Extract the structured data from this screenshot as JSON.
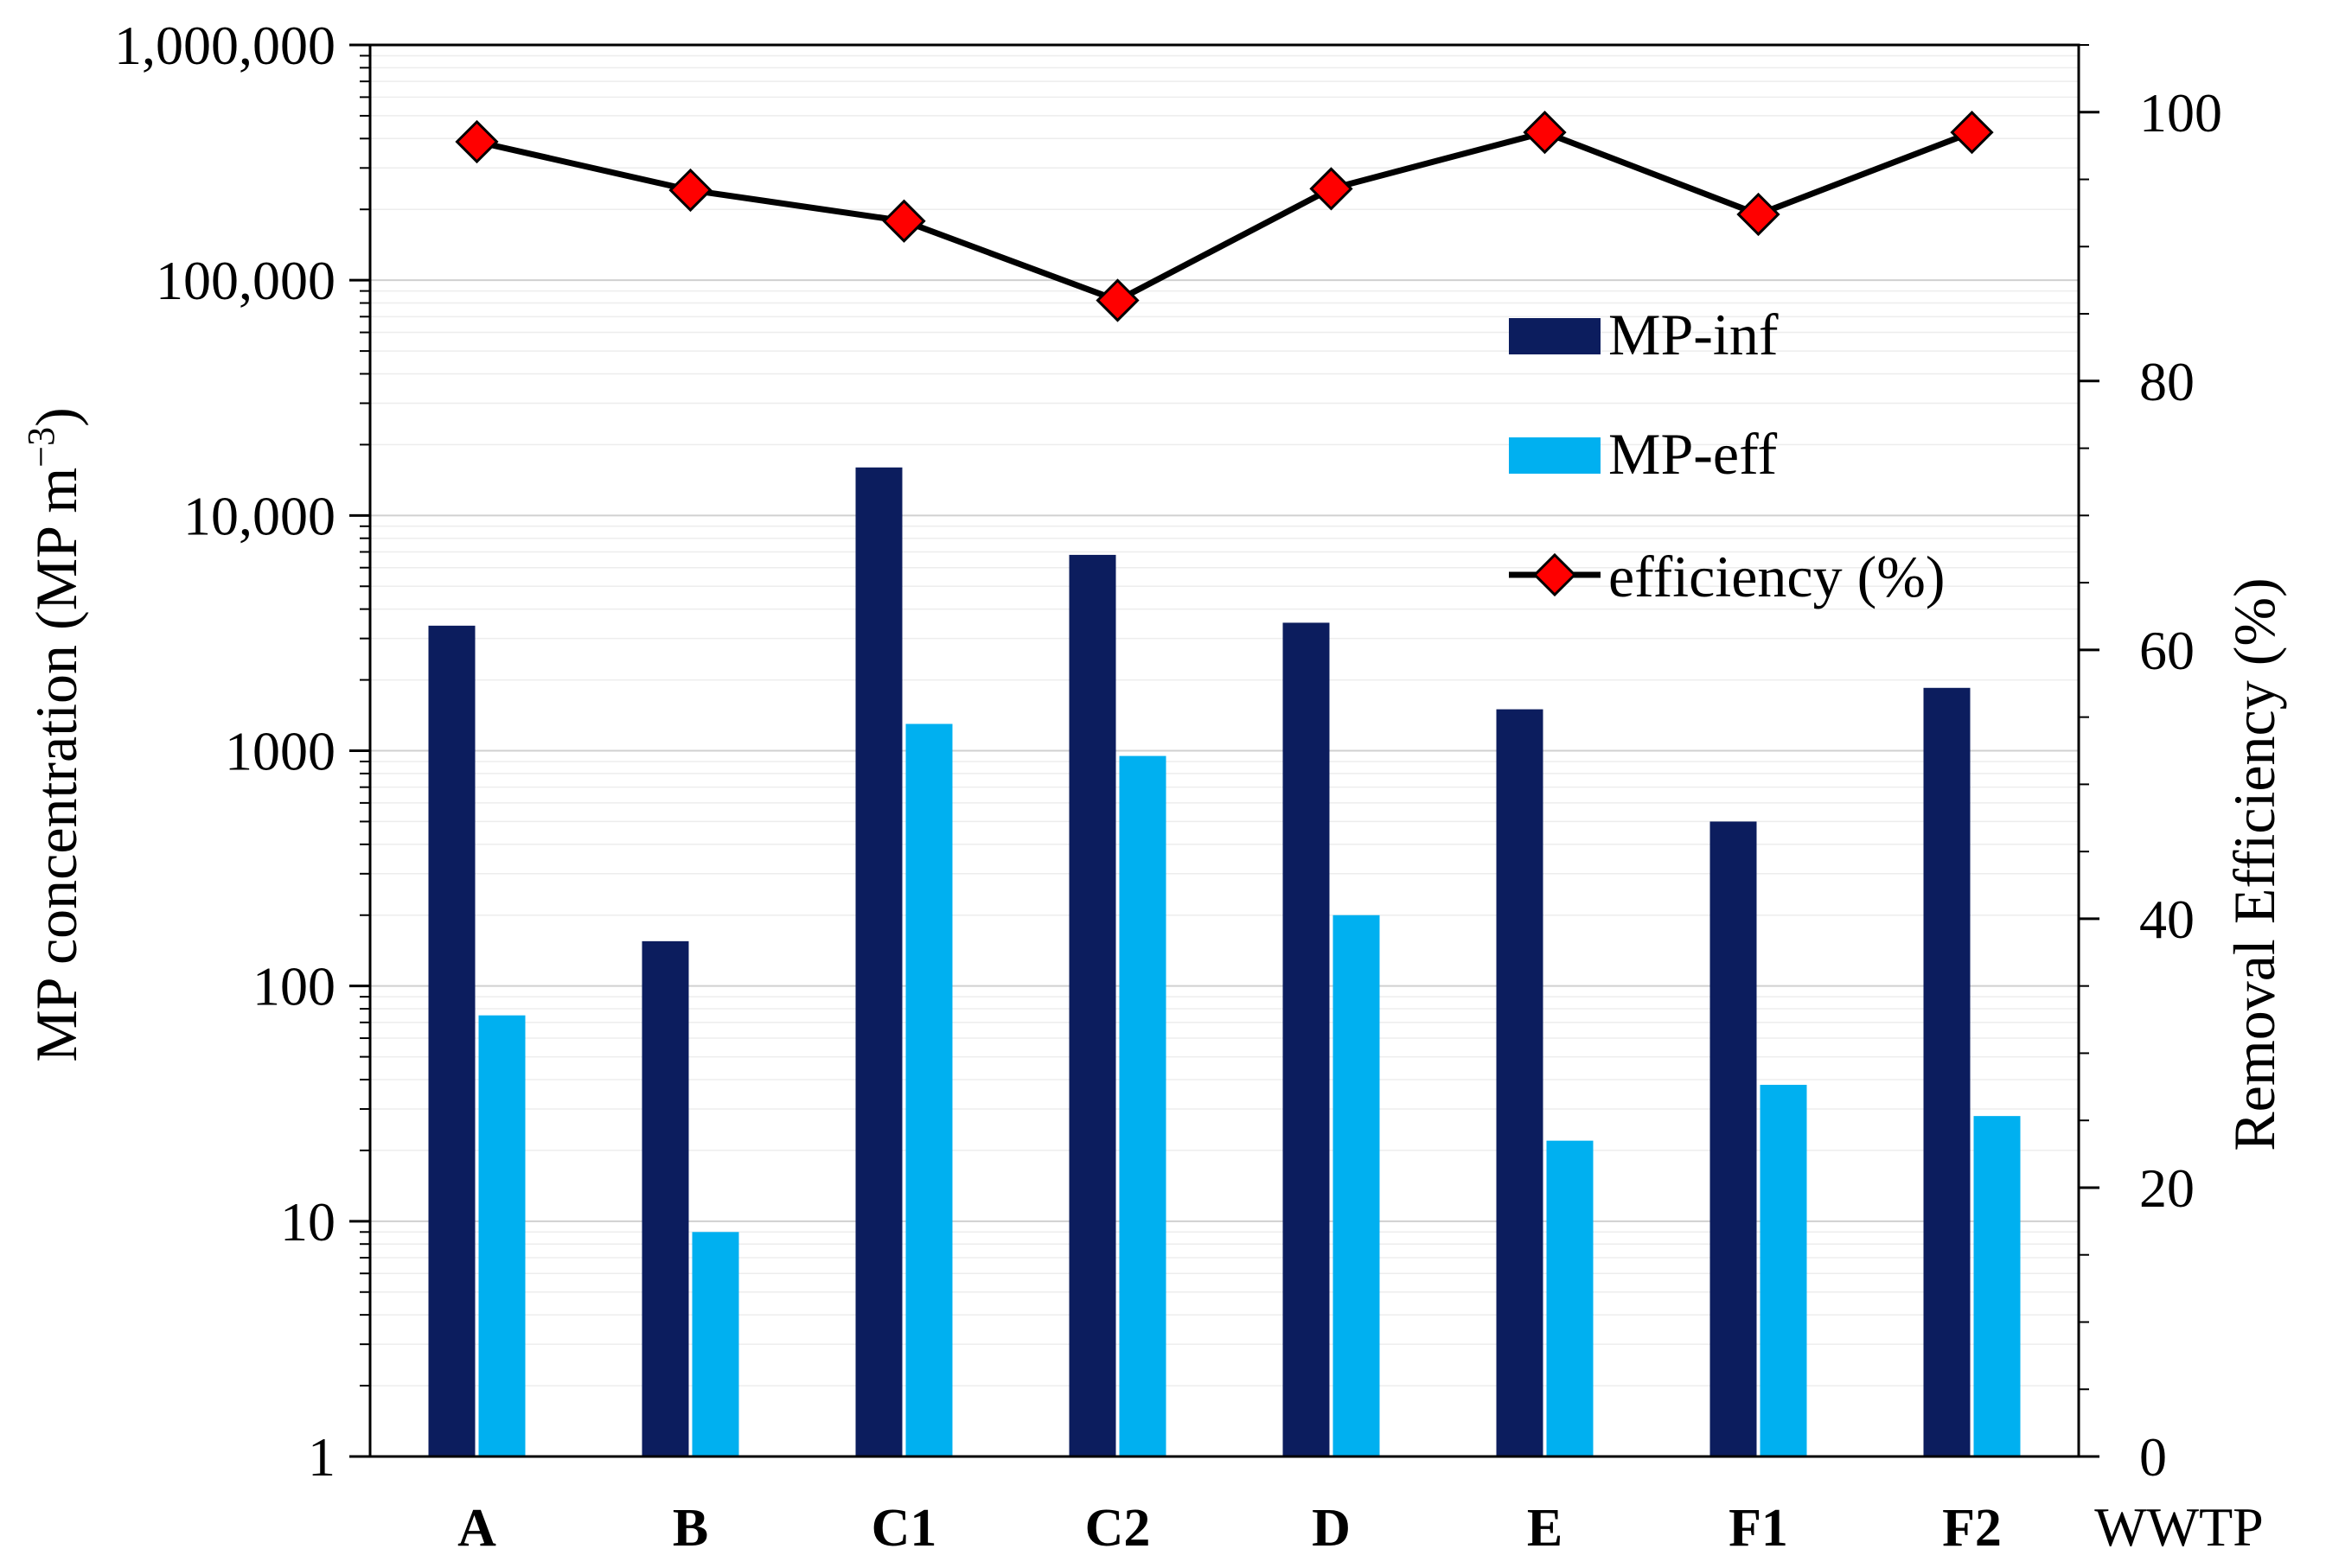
{
  "chart_data": {
    "type": "bar",
    "categories": [
      "A",
      "B",
      "C1",
      "C2",
      "D",
      "E",
      "F1",
      "F2"
    ],
    "series": [
      {
        "name": "MP-inf",
        "axis": "left",
        "color": "#0c1d5e",
        "values": [
          3400,
          155,
          16000,
          6800,
          3500,
          1500,
          500,
          1850
        ]
      },
      {
        "name": "MP-eff",
        "axis": "left",
        "color": "#00b0f0",
        "values": [
          75,
          9,
          1300,
          950,
          200,
          22,
          38,
          28
        ]
      },
      {
        "name": "efficiency (%)",
        "axis": "right",
        "type": "line",
        "color": "#000000",
        "marker_color": "#ff0000",
        "values": [
          97.8,
          94.2,
          91.9,
          86.0,
          94.3,
          98.5,
          92.4,
          98.5
        ]
      }
    ],
    "xlabel": "WWTP",
    "ylabel": "MP concentration (MP m",
    "ylabel_sup": "−3",
    "ylabel_close": ")",
    "y2label": "Removal Efficiency (%)",
    "yscale": "log",
    "ylim": [
      1,
      1000000
    ],
    "y2lim": [
      0,
      105
    ],
    "y_tick_labels": [
      "1",
      "10",
      "100",
      "1000",
      "10,000",
      "100,000",
      "1,000,000"
    ],
    "y2_tick_labels": [
      "0",
      "20",
      "40",
      "60",
      "80",
      "100"
    ],
    "legend_position": "top-right",
    "grid": true
  }
}
